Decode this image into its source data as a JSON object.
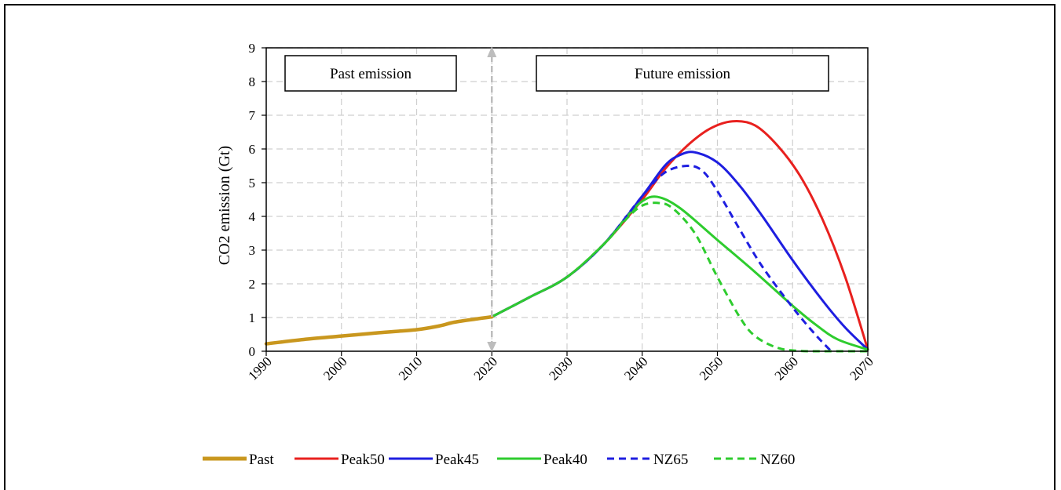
{
  "chart_data": {
    "type": "line",
    "title": "",
    "xlabel": "",
    "ylabel": "CO2 emission (Gt)",
    "xlim": [
      1990,
      2070
    ],
    "ylim": [
      0,
      9
    ],
    "x_ticks": [
      1990,
      2000,
      2010,
      2020,
      2030,
      2040,
      2050,
      2060,
      2070
    ],
    "y_ticks": [
      0,
      1,
      2,
      3,
      4,
      5,
      6,
      7,
      8,
      9
    ],
    "grid": true,
    "legend_position": "bottom",
    "annotations": [
      {
        "text": "Past emission",
        "x_from": 1990,
        "x_to": 2020
      },
      {
        "text": "Future emission",
        "x_from": 2020,
        "x_to": 2070
      }
    ],
    "divider_year": 2020,
    "series": [
      {
        "name": "Past",
        "color": "#C9971E",
        "style": "solid",
        "points": [
          [
            1990,
            0.22
          ],
          [
            1995,
            0.35
          ],
          [
            2000,
            0.45
          ],
          [
            2005,
            0.55
          ],
          [
            2010,
            0.64
          ],
          [
            2013,
            0.75
          ],
          [
            2015,
            0.86
          ],
          [
            2018,
            0.96
          ],
          [
            2020,
            1.02
          ]
        ]
      },
      {
        "name": "Peak50",
        "color": "#E8201E",
        "style": "solid",
        "points": [
          [
            2020,
            1.02
          ],
          [
            2025,
            1.6
          ],
          [
            2030,
            2.2
          ],
          [
            2035,
            3.2
          ],
          [
            2040,
            4.5
          ],
          [
            2043,
            5.4
          ],
          [
            2046,
            6.1
          ],
          [
            2049,
            6.6
          ],
          [
            2052,
            6.82
          ],
          [
            2055,
            6.7
          ],
          [
            2058,
            6.1
          ],
          [
            2061,
            5.2
          ],
          [
            2064,
            3.9
          ],
          [
            2067,
            2.2
          ],
          [
            2070,
            0.05
          ]
        ]
      },
      {
        "name": "Peak45",
        "color": "#1E1EE0",
        "style": "solid",
        "points": [
          [
            2020,
            1.02
          ],
          [
            2025,
            1.6
          ],
          [
            2030,
            2.2
          ],
          [
            2035,
            3.2
          ],
          [
            2040,
            4.6
          ],
          [
            2043,
            5.5
          ],
          [
            2045,
            5.82
          ],
          [
            2047,
            5.9
          ],
          [
            2050,
            5.6
          ],
          [
            2053,
            4.9
          ],
          [
            2056,
            4.0
          ],
          [
            2060,
            2.7
          ],
          [
            2064,
            1.5
          ],
          [
            2067,
            0.7
          ],
          [
            2070,
            0.05
          ]
        ]
      },
      {
        "name": "Peak40",
        "color": "#2ECC2E",
        "style": "solid",
        "points": [
          [
            2020,
            1.02
          ],
          [
            2025,
            1.6
          ],
          [
            2030,
            2.2
          ],
          [
            2035,
            3.2
          ],
          [
            2038,
            4.0
          ],
          [
            2040,
            4.45
          ],
          [
            2042,
            4.58
          ],
          [
            2045,
            4.25
          ],
          [
            2050,
            3.3
          ],
          [
            2055,
            2.35
          ],
          [
            2060,
            1.35
          ],
          [
            2063,
            0.8
          ],
          [
            2066,
            0.35
          ],
          [
            2070,
            0.05
          ]
        ]
      },
      {
        "name": "NZ65",
        "color": "#1E1EE0",
        "style": "dashed",
        "points": [
          [
            2020,
            1.02
          ],
          [
            2025,
            1.6
          ],
          [
            2030,
            2.2
          ],
          [
            2035,
            3.2
          ],
          [
            2040,
            4.6
          ],
          [
            2043,
            5.3
          ],
          [
            2046,
            5.5
          ],
          [
            2048,
            5.35
          ],
          [
            2050,
            4.75
          ],
          [
            2053,
            3.6
          ],
          [
            2056,
            2.5
          ],
          [
            2060,
            1.3
          ],
          [
            2063,
            0.5
          ],
          [
            2065,
            0.03
          ]
        ]
      },
      {
        "name": "NZ60",
        "color": "#2ECC2E",
        "style": "dashed",
        "points": [
          [
            2020,
            1.02
          ],
          [
            2025,
            1.6
          ],
          [
            2030,
            2.2
          ],
          [
            2035,
            3.2
          ],
          [
            2038,
            3.95
          ],
          [
            2040,
            4.32
          ],
          [
            2042,
            4.4
          ],
          [
            2044,
            4.25
          ],
          [
            2047,
            3.5
          ],
          [
            2050,
            2.2
          ],
          [
            2053,
            1.0
          ],
          [
            2055,
            0.45
          ],
          [
            2058,
            0.1
          ],
          [
            2061,
            0.01
          ],
          [
            2065,
            0.0
          ],
          [
            2070,
            0.0
          ]
        ]
      }
    ]
  }
}
